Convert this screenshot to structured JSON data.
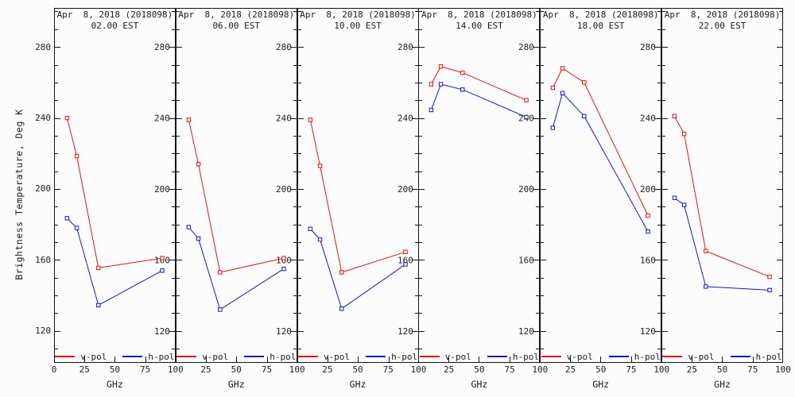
{
  "figure": {
    "ylabel": "Brightness Temperature, Deg K",
    "xlabel": "GHz",
    "colors": {
      "v-pol": "#dd1111",
      "h-pol": "#1515c8",
      "axis": "#141414",
      "background": "#fcfcfc"
    },
    "legend": [
      {
        "label": "v-pol",
        "color_key": "v-pol"
      },
      {
        "label": "h-pol",
        "color_key": "h-pol"
      }
    ],
    "axis": {
      "ylim": [
        102,
        302
      ],
      "yticks_major": [
        120,
        160,
        200,
        240,
        280
      ],
      "ytick_minor_step": 10,
      "xlim": [
        0,
        100
      ],
      "xticks": [
        0,
        25,
        50,
        75,
        100
      ],
      "grid": false
    }
  },
  "chart_data": [
    {
      "type": "line",
      "title": "Apr  8, 2018 (2018098)",
      "subtitle": "02.00 EST",
      "xlabel": "GHz",
      "ylabel": "Brightness Temperature, Deg K",
      "x": [
        10.7,
        18.7,
        36.5,
        89.0
      ],
      "ylim": [
        102,
        302
      ],
      "right_tick_labels": true,
      "series": [
        {
          "name": "v-pol",
          "values": [
            240.0,
            218.5,
            155.5,
            161.0
          ]
        },
        {
          "name": "h-pol",
          "values": [
            183.5,
            178.0,
            134.5,
            154.0
          ]
        }
      ]
    },
    {
      "type": "line",
      "title": "Apr  8, 2018 (2018098)",
      "subtitle": "06.00 EST",
      "xlabel": "GHz",
      "ylabel": "Brightness Temperature, Deg K",
      "x": [
        10.7,
        18.7,
        36.5,
        89.0
      ],
      "ylim": [
        102,
        302
      ],
      "right_tick_labels": true,
      "series": [
        {
          "name": "v-pol",
          "values": [
            239.0,
            214.0,
            153.0,
            161.0
          ]
        },
        {
          "name": "h-pol",
          "values": [
            178.5,
            172.0,
            132.0,
            155.0
          ]
        }
      ]
    },
    {
      "type": "line",
      "title": "Apr  8, 2018 (2018098)",
      "subtitle": "10.00 EST",
      "xlabel": "GHz",
      "ylabel": "Brightness Temperature, Deg K",
      "x": [
        10.7,
        18.7,
        36.5,
        89.0
      ],
      "ylim": [
        102,
        302
      ],
      "right_tick_labels": true,
      "series": [
        {
          "name": "v-pol",
          "values": [
            239.0,
            213.0,
            153.0,
            164.5
          ]
        },
        {
          "name": "h-pol",
          "values": [
            177.5,
            171.5,
            132.5,
            157.5
          ]
        }
      ]
    },
    {
      "type": "line",
      "title": "Apr  8, 2018 (2018098)",
      "subtitle": "14.00 EST",
      "xlabel": "GHz",
      "ylabel": "Brightness Temperature, Deg K",
      "x": [
        10.7,
        18.7,
        36.5,
        89.0
      ],
      "ylim": [
        102,
        302
      ],
      "right_tick_labels": true,
      "series": [
        {
          "name": "v-pol",
          "values": [
            259.0,
            269.0,
            265.5,
            250.0
          ]
        },
        {
          "name": "h-pol",
          "values": [
            244.5,
            259.0,
            256.0,
            240.5
          ]
        }
      ]
    },
    {
      "type": "line",
      "title": "Apr  8, 2018 (2018098)",
      "subtitle": "18.00 EST",
      "xlabel": "GHz",
      "ylabel": "Brightness Temperature, Deg K",
      "x": [
        10.7,
        18.7,
        36.5,
        89.0
      ],
      "ylim": [
        102,
        302
      ],
      "right_tick_labels": true,
      "series": [
        {
          "name": "v-pol",
          "values": [
            257.0,
            268.0,
            260.0,
            185.0
          ]
        },
        {
          "name": "h-pol",
          "values": [
            234.5,
            254.0,
            241.0,
            176.0
          ]
        }
      ]
    },
    {
      "type": "line",
      "title": "Apr  8, 2018 (2018098)",
      "subtitle": "22.00 EST",
      "xlabel": "GHz",
      "ylabel": "Brightness Temperature, Deg K",
      "x": [
        10.7,
        18.7,
        36.5,
        89.0
      ],
      "ylim": [
        102,
        302
      ],
      "right_tick_labels": false,
      "series": [
        {
          "name": "v-pol",
          "values": [
            241.0,
            231.0,
            165.0,
            150.5
          ]
        },
        {
          "name": "h-pol",
          "values": [
            195.0,
            191.0,
            145.0,
            143.0
          ]
        }
      ]
    }
  ]
}
